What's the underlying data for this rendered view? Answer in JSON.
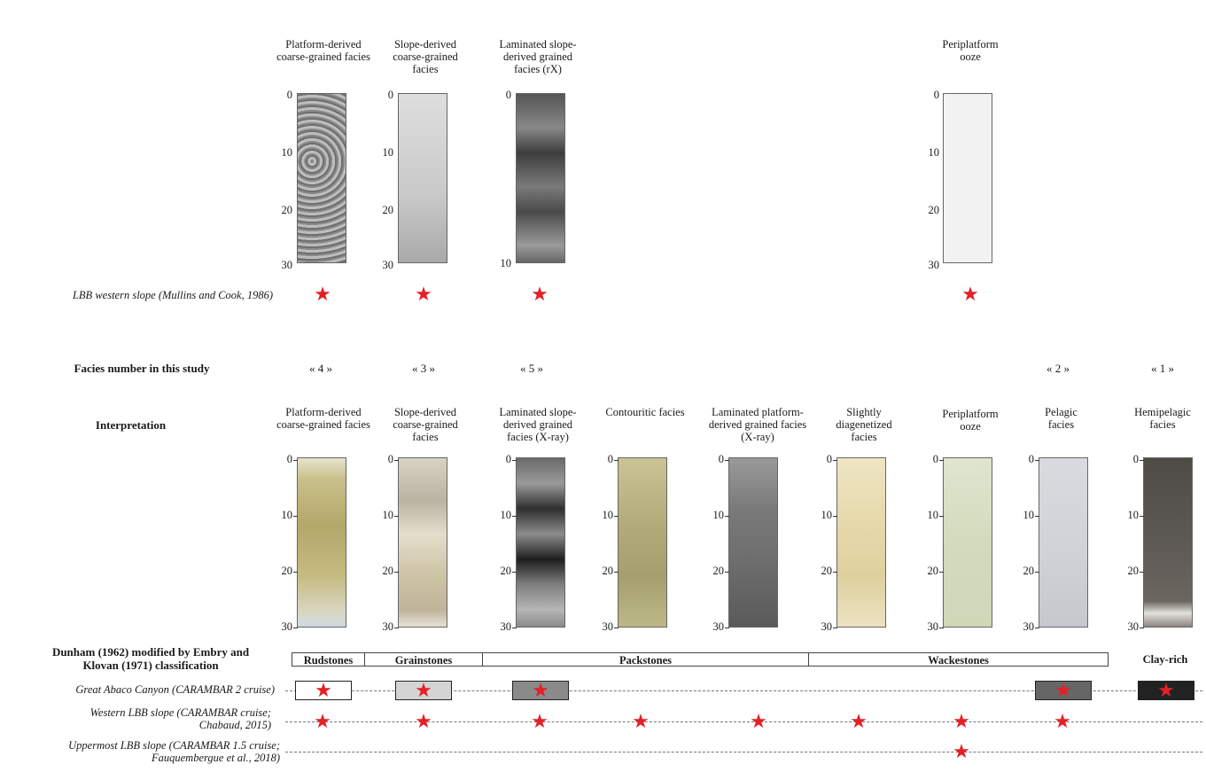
{
  "top_headers": [
    {
      "id": "platform",
      "text": "Platform-derived\ncoarse-grained facies"
    },
    {
      "id": "slope",
      "text": "Slope-derived\ncoarse-grained\nfacies"
    },
    {
      "id": "laminated",
      "text": "Laminated slope-\nderived grained\nfacies (rX)"
    },
    {
      "id": "peri",
      "text": "Periplatform\nooze"
    }
  ],
  "top_scale_ticks": [
    "0",
    "10",
    "20",
    "30"
  ],
  "top_scale_ticks_xray": [
    "0",
    "10"
  ],
  "lbb_western_label": "LBB western slope (Mullins and Cook, 1986)",
  "facies_number_label": "Facies number in this study",
  "facies_numbers": [
    "« 4 »",
    "« 3 »",
    "« 5 »",
    "« 2 »",
    "« 1 »"
  ],
  "interpretation_label": "Interpretation",
  "bottom_headers": [
    "Platform-derived\ncoarse-grained facies",
    "Slope-derived\ncoarse-grained\nfacies",
    "Laminated slope-\nderived grained\nfacies (X-ray)",
    "Contouritic facies",
    "Laminated platform-\nderived grained facies\n(X-ray)",
    "Slightly\ndiagenetized\nfacies",
    "Periplatform\nooze",
    "Pelagic\nfacies",
    "Hemipelagic\nfacies"
  ],
  "bottom_scale_ticks": [
    "0",
    "10",
    "20",
    "30"
  ],
  "classification_label": "Dunham (1962) modified by Embry and\nKlovan (1971) classification",
  "classes": [
    "Rudstones",
    "Grainstones",
    "Packstones",
    "Wackestones",
    "Clay-rich"
  ],
  "rows": [
    {
      "label": "Great Abaco Canyon (CARAMBAR 2 cruise)"
    },
    {
      "label": "Western LBB slope (CARAMBAR cruise;\nChabaud, 2015)"
    },
    {
      "label": "Uppermost LBB slope (CARAMBAR 1.5 cruise;\nFauquembergue et al., 2018)"
    }
  ],
  "colors": {
    "star": "#e32026",
    "rud_box": "#ffffff",
    "grain_box": "#d4d4d4",
    "pack_box": "#8a8a8a",
    "pelagic_box": "#666666",
    "clay_box": "#222222"
  },
  "icons": [
    "star-icon"
  ]
}
